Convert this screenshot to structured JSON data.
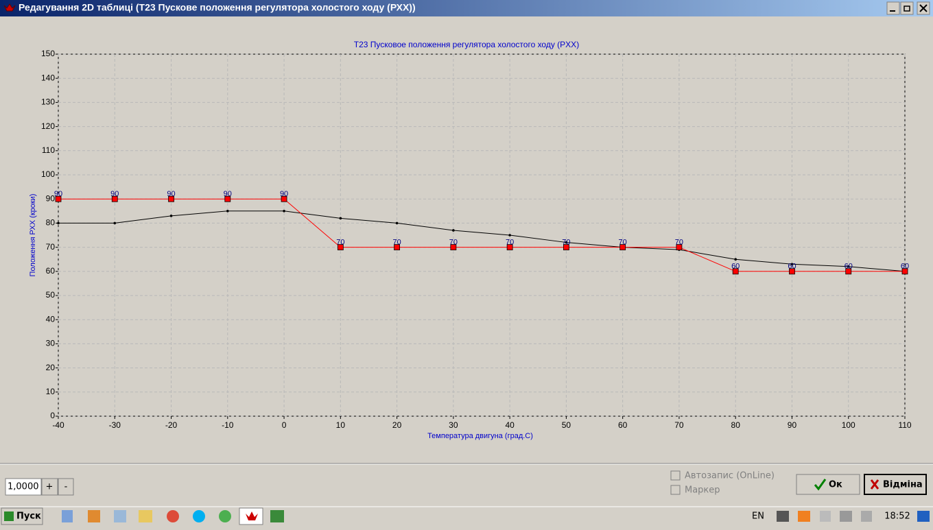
{
  "window": {
    "title": "Редагування 2D таблиці (T23 Пускове положення регулятора холостого ходу (РХХ))"
  },
  "chart_data": {
    "type": "line",
    "title": "T23 Пусковое положення регулятора холостого ходу (PXX)",
    "x_label": "Температура двигуна (град.С)",
    "y_label": "Положення РХХ (кроки)",
    "x": [
      -40,
      -30,
      -20,
      -10,
      0,
      10,
      20,
      30,
      40,
      50,
      60,
      70,
      80,
      90,
      100,
      110
    ],
    "series": [
      {
        "color": "#ff0000",
        "marker": "square",
        "data_labels": true,
        "values": [
          90,
          90,
          90,
          90,
          90,
          70,
          70,
          70,
          70,
          70,
          70,
          70,
          60,
          60,
          60,
          60
        ]
      },
      {
        "color": "#000000",
        "marker": "dot",
        "data_labels": false,
        "values": [
          80,
          80,
          83,
          85,
          85,
          82,
          80,
          77,
          75,
          72,
          70,
          69,
          65,
          63,
          62,
          60
        ]
      }
    ],
    "xlim": [
      -40,
      110
    ],
    "ylim": [
      0,
      150
    ],
    "xticks": [
      -40,
      -30,
      -20,
      -10,
      0,
      10,
      20,
      30,
      40,
      50,
      60,
      70,
      80,
      90,
      100,
      110
    ],
    "yticks": [
      0,
      10,
      20,
      30,
      40,
      50,
      60,
      70,
      80,
      90,
      100,
      110,
      120,
      130,
      140,
      150
    ],
    "grid": true
  },
  "controls": {
    "scale_input": "1,0000",
    "plus": "+",
    "minus": "-",
    "autosave": "Автозапис (OnLine)",
    "marker": "Маркер",
    "ok": "Ок",
    "cancel": "Відміна"
  },
  "taskbar": {
    "start": "Пуск",
    "lang": "EN",
    "clock": "18:52"
  }
}
